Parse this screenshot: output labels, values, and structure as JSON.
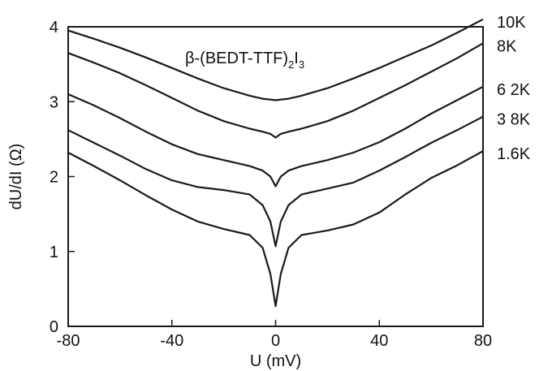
{
  "chart_data": {
    "type": "line",
    "title": "β-(BEDT-TTF)₂I₃",
    "title_parts": {
      "main": "β-(BEDT-TTF)",
      "sub1": "2",
      "mid": "I",
      "sub2": "3"
    },
    "xlabel": "U (mV)",
    "ylabel": "dU/dI (Ω)",
    "xlim": [
      -80,
      80
    ],
    "ylim": [
      0,
      4
    ],
    "xticks": [
      -80,
      -40,
      0,
      40,
      80
    ],
    "yticks": [
      0,
      1,
      2,
      3,
      4
    ],
    "grid": false,
    "legend": "right",
    "series": [
      {
        "name": "10K",
        "x": [
          -80,
          -70,
          -60,
          -50,
          -40,
          -30,
          -20,
          -10,
          -5,
          0,
          5,
          10,
          20,
          30,
          40,
          50,
          60,
          70,
          80
        ],
        "values": [
          3.95,
          3.84,
          3.72,
          3.59,
          3.45,
          3.31,
          3.18,
          3.08,
          3.04,
          3.02,
          3.04,
          3.08,
          3.18,
          3.31,
          3.45,
          3.6,
          3.75,
          3.92,
          4.1
        ]
      },
      {
        "name": "8K",
        "x": [
          -80,
          -70,
          -60,
          -50,
          -40,
          -30,
          -20,
          -10,
          -5,
          -2,
          0,
          2,
          5,
          10,
          20,
          30,
          40,
          50,
          60,
          70,
          80
        ],
        "values": [
          3.65,
          3.52,
          3.38,
          3.22,
          3.05,
          2.88,
          2.74,
          2.64,
          2.6,
          2.57,
          2.52,
          2.57,
          2.6,
          2.64,
          2.74,
          2.88,
          3.05,
          3.22,
          3.4,
          3.58,
          3.78
        ]
      },
      {
        "name": "6 2K",
        "x": [
          -80,
          -70,
          -60,
          -50,
          -40,
          -30,
          -20,
          -10,
          -5,
          -2,
          0,
          2,
          5,
          10,
          20,
          30,
          40,
          50,
          60,
          70,
          80
        ],
        "values": [
          3.1,
          2.95,
          2.78,
          2.6,
          2.43,
          2.3,
          2.22,
          2.14,
          2.08,
          2.0,
          1.87,
          2.0,
          2.08,
          2.14,
          2.22,
          2.32,
          2.46,
          2.64,
          2.84,
          3.02,
          3.2
        ]
      },
      {
        "name": "3 8K",
        "x": [
          -80,
          -70,
          -60,
          -50,
          -40,
          -30,
          -20,
          -10,
          -5,
          -2,
          0,
          2,
          5,
          10,
          20,
          30,
          40,
          50,
          60,
          70,
          80
        ],
        "values": [
          2.62,
          2.45,
          2.28,
          2.1,
          1.95,
          1.86,
          1.82,
          1.76,
          1.62,
          1.4,
          1.07,
          1.4,
          1.62,
          1.76,
          1.84,
          1.92,
          2.08,
          2.26,
          2.45,
          2.62,
          2.8
        ]
      },
      {
        "name": "1.6K",
        "x": [
          -80,
          -70,
          -60,
          -50,
          -40,
          -30,
          -20,
          -10,
          -5,
          -2,
          0,
          2,
          5,
          10,
          20,
          30,
          40,
          50,
          60,
          70,
          80
        ],
        "values": [
          2.32,
          2.14,
          1.95,
          1.75,
          1.56,
          1.4,
          1.3,
          1.22,
          1.05,
          0.7,
          0.27,
          0.7,
          1.05,
          1.22,
          1.28,
          1.36,
          1.52,
          1.76,
          1.98,
          2.15,
          2.34
        ]
      }
    ],
    "colors": {
      "line": "#1a1a1a",
      "axis": "#1a1a1a",
      "background": "#ffffff"
    }
  }
}
